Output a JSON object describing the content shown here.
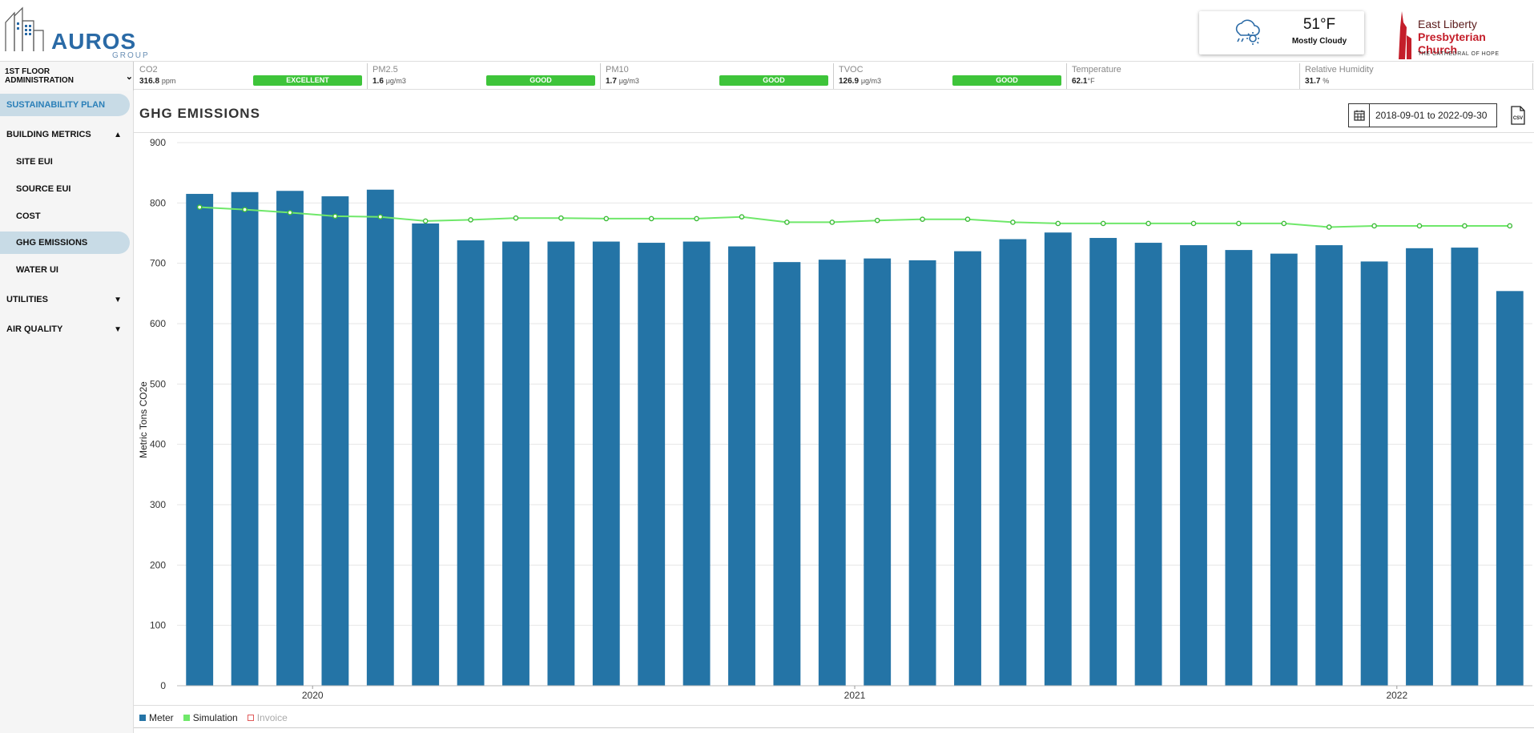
{
  "header": {
    "logo_text": "AUROS",
    "logo_sub": "GROUP",
    "weather": {
      "temp": "51°F",
      "desc": "Mostly Cloudy",
      "icon": "cloud-rain-sun-icon"
    },
    "church": {
      "line1": "East Liberty",
      "line2": "Presbyterian Church",
      "line3": "THE CATHEDRAL OF HOPE"
    }
  },
  "topbar": {
    "floor": "1ST FLOOR ADMINISTRATION",
    "metrics": [
      {
        "name": "CO2",
        "value": "316.8",
        "unit": "ppm",
        "badge": "EXCELLENT"
      },
      {
        "name": "PM2.5",
        "value": "1.6",
        "unit": "μg/m3",
        "badge": "GOOD"
      },
      {
        "name": "PM10",
        "value": "1.7",
        "unit": "μg/m3",
        "badge": "GOOD"
      },
      {
        "name": "TVOC",
        "value": "126.9",
        "unit": "μg/m3",
        "badge": "GOOD"
      },
      {
        "name": "Temperature",
        "value": "62.1",
        "unit": "°F",
        "badge": ""
      },
      {
        "name": "Relative Humidity",
        "value": "31.7",
        "unit": "%",
        "badge": ""
      }
    ],
    "badge_color": "#3ec43a"
  },
  "sidebar": {
    "items": [
      {
        "label": "SUSTAINABILITY PLAN"
      },
      {
        "label": "BUILDING METRICS"
      },
      {
        "label": "SITE EUI"
      },
      {
        "label": "SOURCE EUI"
      },
      {
        "label": "COST"
      },
      {
        "label": "GHG EMISSIONS"
      },
      {
        "label": "WATER UI"
      },
      {
        "label": "UTILITIES"
      },
      {
        "label": "AIR QUALITY"
      }
    ]
  },
  "content": {
    "title": "GHG EMISSIONS",
    "date_range": "2018-09-01 to 2022-09-30"
  },
  "chart_data": {
    "type": "bar",
    "ylabel": "Metric Tons CO2e",
    "ylim": [
      0,
      900
    ],
    "yticks": [
      "0",
      "100",
      "200",
      "300",
      "400",
      "500",
      "600",
      "700",
      "800",
      "900"
    ],
    "year_labels": [
      {
        "label": "2020",
        "after_bar": 2
      },
      {
        "label": "2021",
        "after_bar": 14
      },
      {
        "label": "2022",
        "after_bar": 26
      }
    ],
    "series": [
      {
        "name": "Meter",
        "color": "#2474a6",
        "kind": "bar",
        "values": [
          815,
          818,
          820,
          811,
          822,
          766,
          738,
          736,
          736,
          736,
          734,
          736,
          728,
          702,
          706,
          708,
          705,
          720,
          740,
          751,
          742,
          734,
          730,
          722,
          716,
          730,
          703,
          725,
          726,
          654
        ]
      },
      {
        "name": "Simulation",
        "color": "#6fe86a",
        "kind": "line",
        "values": [
          793,
          789,
          784,
          778,
          777,
          770,
          772,
          775,
          775,
          774,
          774,
          774,
          777,
          768,
          768,
          771,
          773,
          773,
          768,
          766,
          766,
          766,
          766,
          766,
          766,
          760,
          762,
          762,
          762,
          762
        ]
      }
    ],
    "legend": [
      {
        "name": "Meter",
        "color": "#2474a6",
        "active": true
      },
      {
        "name": "Simulation",
        "color": "#6fe86a",
        "active": true
      },
      {
        "name": "Invoice",
        "color": "#e05a5a",
        "active": false
      }
    ],
    "grid": true,
    "legend_position": "bottom-left"
  }
}
